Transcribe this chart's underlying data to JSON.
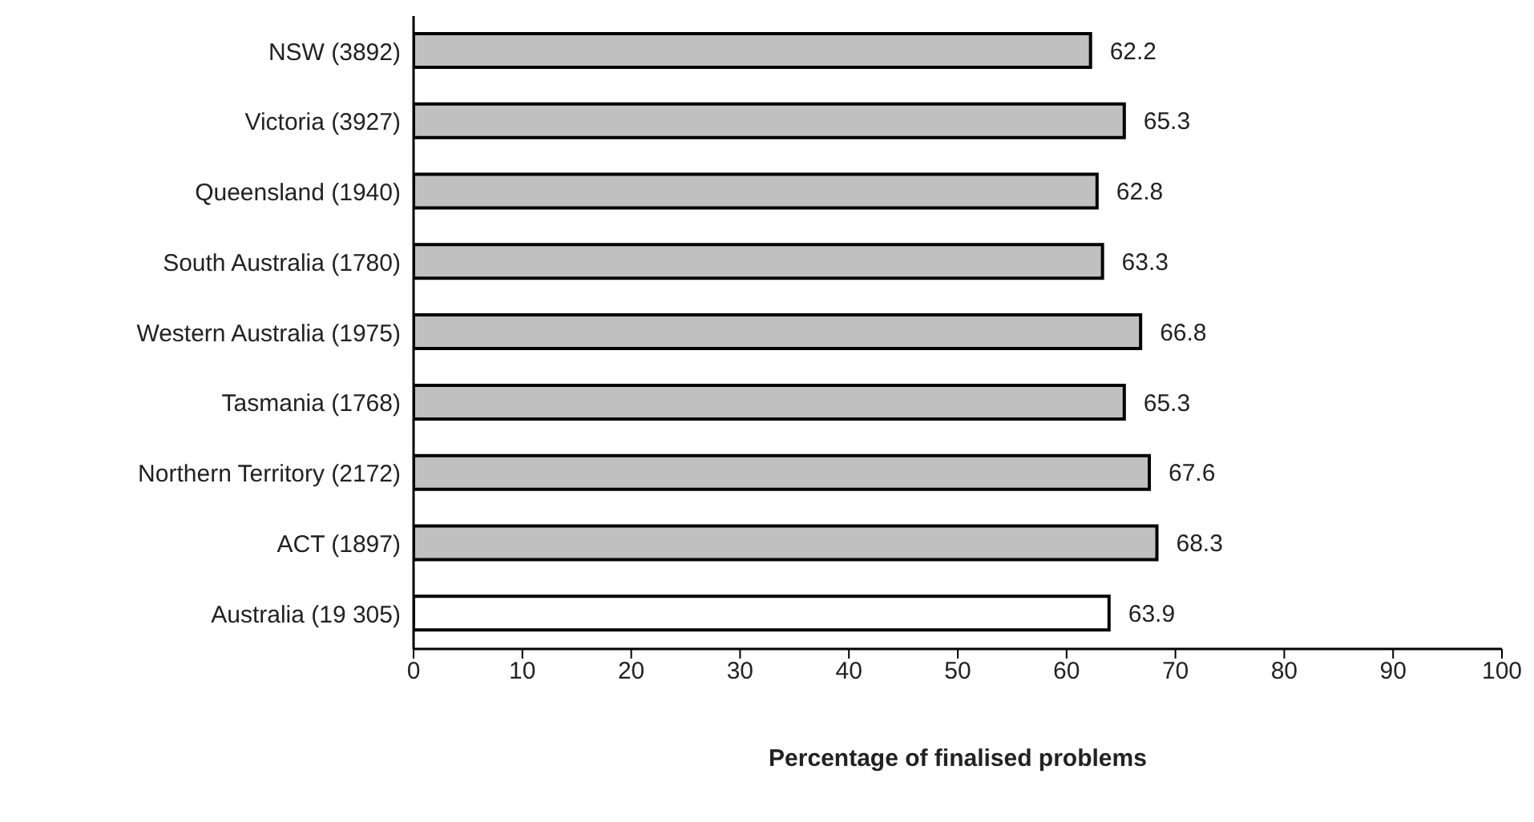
{
  "chart_data": {
    "type": "bar",
    "orientation": "horizontal",
    "categories": [
      "NSW (3892)",
      "Victoria (3927)",
      "Queensland (1940)",
      "South Australia (1780)",
      "Western Australia (1975)",
      "Tasmania (1768)",
      "Northern Territory (2172)",
      "ACT (1897)",
      "Australia (19 305)"
    ],
    "values": [
      62.2,
      65.3,
      62.8,
      63.3,
      66.8,
      65.3,
      67.6,
      68.3,
      63.9
    ],
    "colors": [
      "#c0c0c0",
      "#c0c0c0",
      "#c0c0c0",
      "#c0c0c0",
      "#c0c0c0",
      "#c0c0c0",
      "#c0c0c0",
      "#c0c0c0",
      "#ffffff"
    ],
    "xlabel": "Percentage of finalised problems",
    "xlim": [
      0,
      100
    ],
    "xticks": [
      0,
      10,
      20,
      30,
      40,
      50,
      60,
      70,
      80,
      90,
      100
    ],
    "data_labels": true,
    "grid": false,
    "legend": false
  }
}
